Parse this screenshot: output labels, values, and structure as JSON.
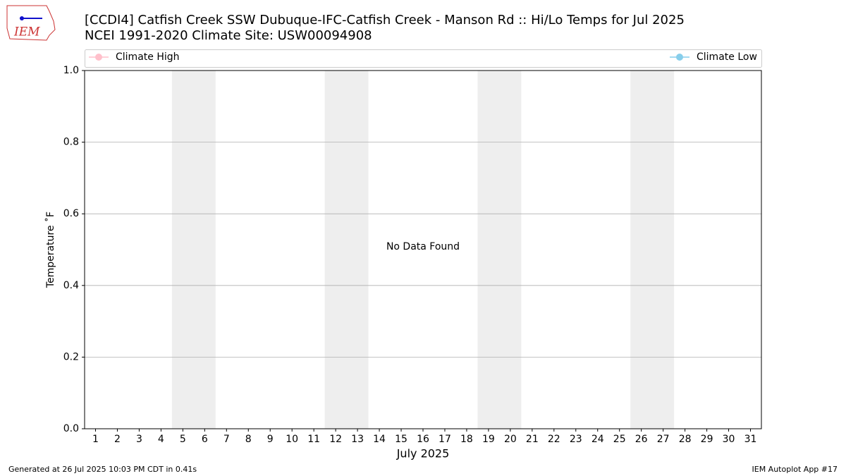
{
  "chart_data": {
    "type": "line",
    "title": "[CCDI4] Catfish Creek  SSW Dubuque-IFC-Catfish Creek - Manson Rd :: Hi/Lo Temps for Jul 2025",
    "subtitle": "NCEI 1991-2020 Climate Site: USW00094908",
    "xlabel": "July 2025",
    "ylabel": "Temperature ˚F",
    "annotation": "No Data Found",
    "x": [
      1,
      2,
      3,
      4,
      5,
      6,
      7,
      8,
      9,
      10,
      11,
      12,
      13,
      14,
      15,
      16,
      17,
      18,
      19,
      20,
      21,
      22,
      23,
      24,
      25,
      26,
      27,
      28,
      29,
      30,
      31
    ],
    "series": [
      {
        "name": "Climate High",
        "color": "#ffc0cb",
        "values": [
          null,
          null,
          null,
          null,
          null,
          null,
          null,
          null,
          null,
          null,
          null,
          null,
          null,
          null,
          null,
          null,
          null,
          null,
          null,
          null,
          null,
          null,
          null,
          null,
          null,
          null,
          null,
          null,
          null,
          null,
          null
        ]
      },
      {
        "name": "Climate Low",
        "color": "#87ceeb",
        "values": [
          null,
          null,
          null,
          null,
          null,
          null,
          null,
          null,
          null,
          null,
          null,
          null,
          null,
          null,
          null,
          null,
          null,
          null,
          null,
          null,
          null,
          null,
          null,
          null,
          null,
          null,
          null,
          null,
          null,
          null,
          null
        ]
      }
    ],
    "shaded_spans": [
      [
        4.5,
        6.5
      ],
      [
        11.5,
        13.5
      ],
      [
        18.5,
        20.5
      ],
      [
        25.5,
        27.5
      ]
    ],
    "shade_color": "#eeeeee",
    "xlim": [
      0.5,
      31.5
    ],
    "xticks": [
      1,
      2,
      3,
      4,
      5,
      6,
      7,
      8,
      9,
      10,
      11,
      12,
      13,
      14,
      15,
      16,
      17,
      18,
      19,
      20,
      21,
      22,
      23,
      24,
      25,
      26,
      27,
      28,
      29,
      30,
      31
    ],
    "ylim": [
      0,
      1
    ],
    "yticks": [
      {
        "value": 0,
        "label": "0.0"
      },
      {
        "value": 0.2,
        "label": "0.2"
      },
      {
        "value": 0.4,
        "label": "0.4"
      },
      {
        "value": 0.6,
        "label": "0.6"
      },
      {
        "value": 0.8,
        "label": "0.8"
      },
      {
        "value": 1,
        "label": "1.0"
      }
    ],
    "grid": true
  },
  "logo_text": "IEM",
  "footer_left": "Generated at 26 Jul 2025 10:03 PM CDT in 0.41s",
  "footer_right": "IEM Autoplot App #17"
}
